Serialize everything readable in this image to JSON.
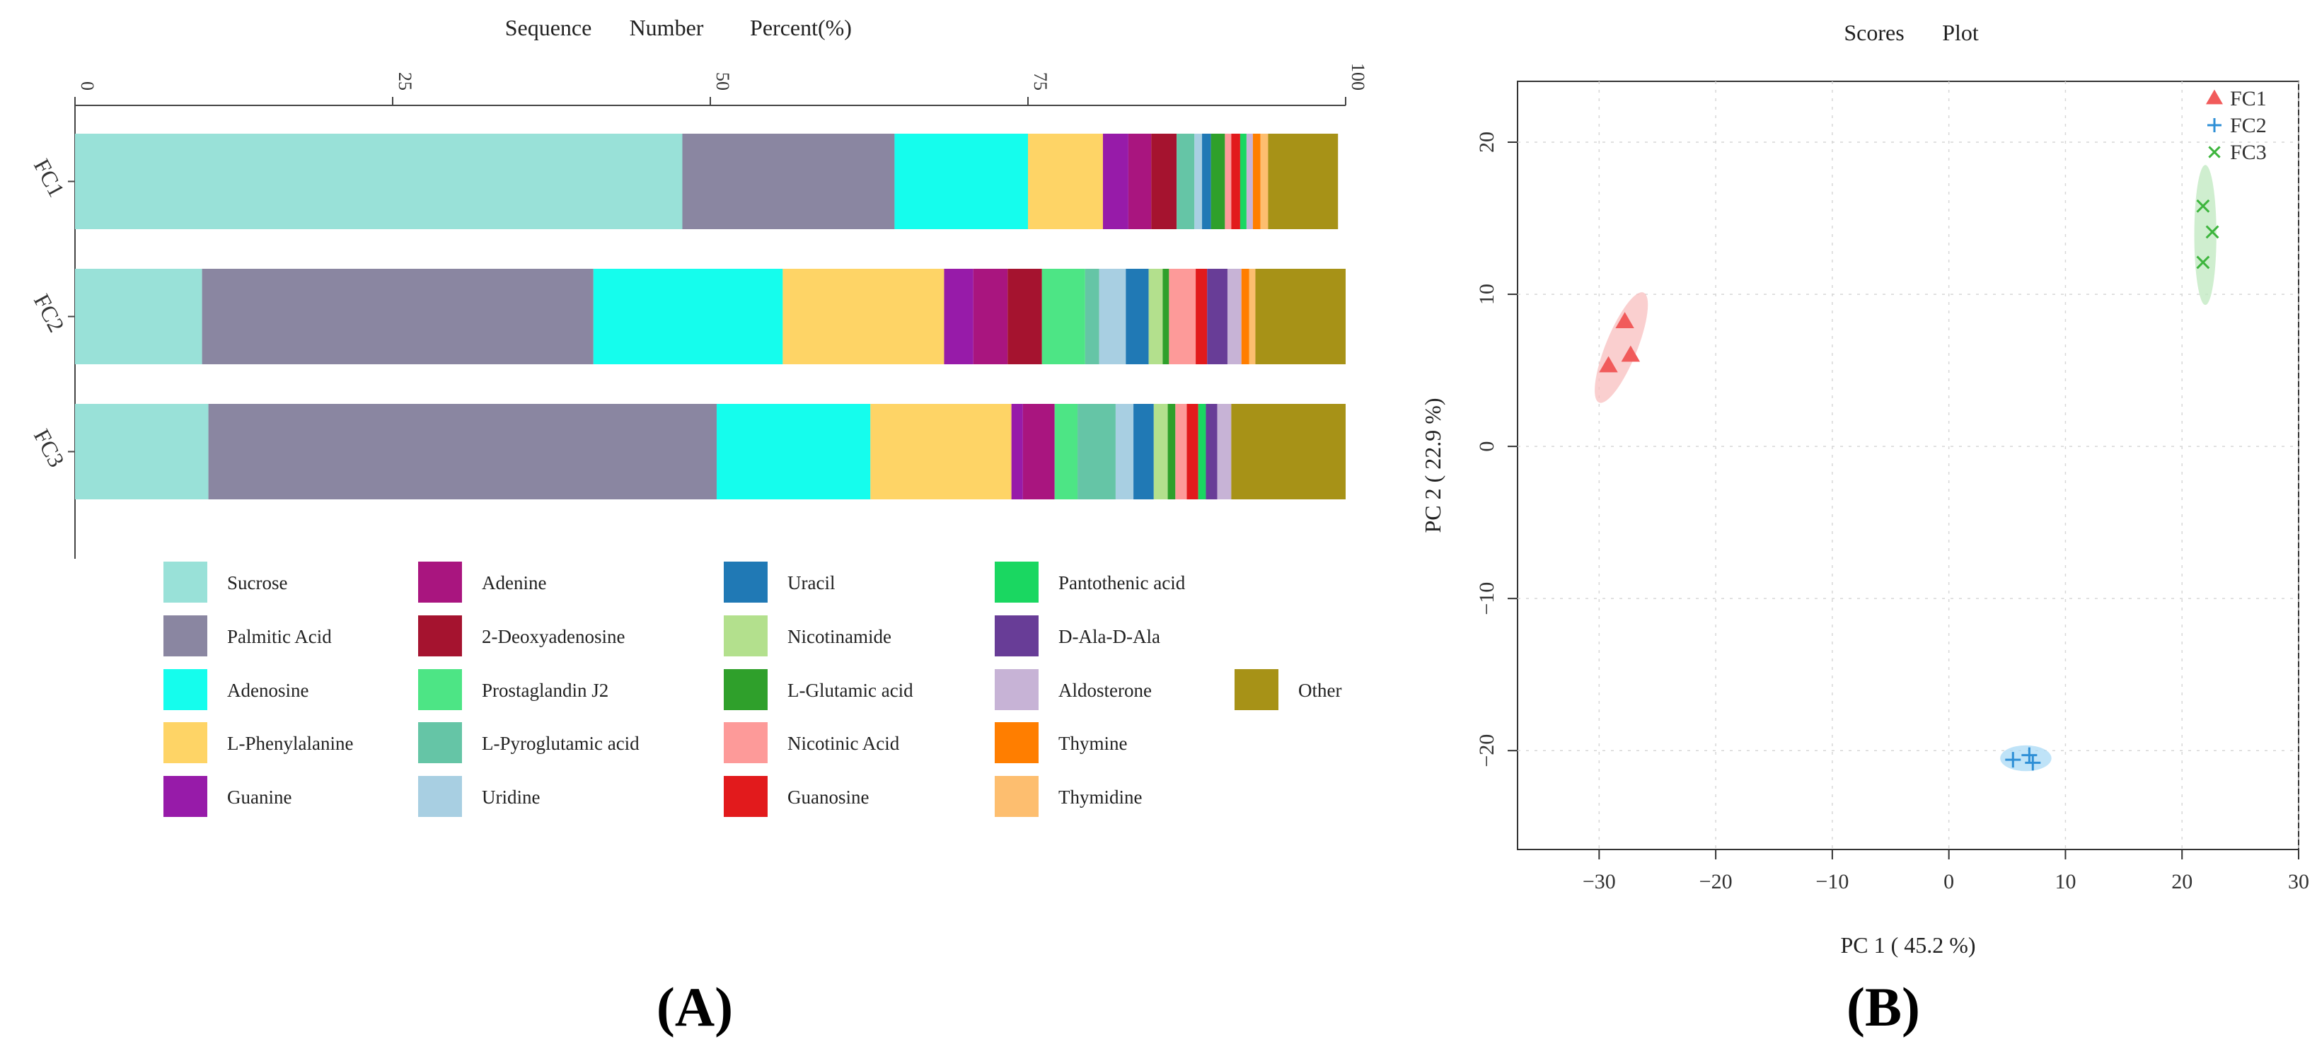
{
  "panel_labels": [
    "(A)",
    "(B)"
  ],
  "chart_data": [
    {
      "type": "bar",
      "orientation": "horizontal",
      "stacked": true,
      "title": "Sequence Number Percent(%)",
      "title_parts": [
        "Sequence",
        "Number",
        "Percent(%)"
      ],
      "xlabel": "",
      "ylabel": "",
      "xlim": [
        0,
        100
      ],
      "x_ticks": [
        0,
        25,
        50,
        75,
        100
      ],
      "x_tick_labels": [
        "0",
        "25",
        "50",
        "75",
        "100"
      ],
      "categories": [
        "FC1",
        "FC2",
        "FC3"
      ],
      "grid": false,
      "legend_position": "bottom",
      "series": [
        {
          "name": "Sucrose",
          "color": "#99E1D8",
          "values": [
            47.8,
            10.0,
            10.5
          ]
        },
        {
          "name": "Palmitic Acid",
          "color": "#8A86A1",
          "values": [
            16.7,
            30.8,
            40.0
          ]
        },
        {
          "name": "Adenosine",
          "color": "#15FDED",
          "values": [
            10.5,
            14.9,
            12.1
          ]
        },
        {
          "name": "L-Phenylalanine",
          "color": "#FED466",
          "values": [
            5.9,
            12.7,
            11.1
          ]
        },
        {
          "name": "Guanine",
          "color": "#971BA9",
          "values": [
            2.0,
            2.3,
            0.9
          ]
        },
        {
          "name": "Adenine",
          "color": "#A9157F",
          "values": [
            1.8,
            2.7,
            2.5
          ]
        },
        {
          "name": "2-Deoxyadenosine",
          "color": "#A5132F",
          "values": [
            2.0,
            2.7,
            0.0
          ]
        },
        {
          "name": "Prostaglandin J2",
          "color": "#4DE585",
          "values": [
            0.0,
            3.4,
            1.8
          ]
        },
        {
          "name": "L-Pyroglutamic acid",
          "color": "#65C5A6",
          "values": [
            1.4,
            1.1,
            3.0
          ]
        },
        {
          "name": "Uridine",
          "color": "#A8CFE2",
          "values": [
            0.6,
            2.1,
            1.4
          ]
        },
        {
          "name": "Uracil",
          "color": "#2079B5",
          "values": [
            0.7,
            1.8,
            1.6
          ]
        },
        {
          "name": "Nicotinamide",
          "color": "#B3E08D",
          "values": [
            0.0,
            1.1,
            1.1
          ]
        },
        {
          "name": "L-Glutamic acid",
          "color": "#2FA02B",
          "values": [
            1.1,
            0.5,
            0.6
          ]
        },
        {
          "name": "Nicotinic Acid",
          "color": "#FD9A99",
          "values": [
            0.5,
            2.1,
            0.9
          ]
        },
        {
          "name": "Guanosine",
          "color": "#E21A1C",
          "values": [
            0.7,
            0.9,
            0.9
          ]
        },
        {
          "name": "Pantothenic acid",
          "color": "#1AD761",
          "values": [
            0.5,
            0.0,
            0.6
          ]
        },
        {
          "name": "D-Ala-D-Ala",
          "color": "#683D97",
          "values": [
            0.0,
            1.6,
            0.9
          ]
        },
        {
          "name": "Aldosterone",
          "color": "#C7B3D6",
          "values": [
            0.5,
            1.1,
            1.1
          ]
        },
        {
          "name": "Thymine",
          "color": "#FF7E00",
          "values": [
            0.6,
            0.6,
            0.0
          ]
        },
        {
          "name": "Thymidine",
          "color": "#FDBE6F",
          "values": [
            0.6,
            0.5,
            0.0
          ]
        },
        {
          "name": "Other",
          "color": "#A79217",
          "values": [
            5.5,
            7.1,
            9.0
          ]
        }
      ],
      "legend_columns": [
        [
          "Sucrose",
          "Palmitic Acid",
          "Adenosine",
          "L-Phenylalanine",
          "Guanine"
        ],
        [
          "Adenine",
          "2-Deoxyadenosine",
          "Prostaglandin J2",
          "L-Pyroglutamic acid",
          "Uridine"
        ],
        [
          "Uracil",
          "Nicotinamide",
          "L-Glutamic acid",
          "Nicotinic Acid",
          "Guanosine"
        ],
        [
          "Pantothenic acid",
          "D-Ala-D-Ala",
          "Aldosterone",
          "Thymine",
          "Thymidine"
        ],
        [
          "",
          "",
          "Other",
          "",
          ""
        ]
      ]
    },
    {
      "type": "scatter",
      "title": "Scores Plot",
      "title_parts": [
        "Scores",
        "Plot"
      ],
      "xlabel": "PC 1 ( 45.2 %)",
      "ylabel": "PC 2 ( 22.9 %)",
      "xlim": [
        -37,
        30
      ],
      "ylim": [
        -26.5,
        24
      ],
      "x_ticks": [
        -30,
        -20,
        -10,
        0,
        10,
        20,
        30
      ],
      "x_tick_labels": [
        "−30",
        "−20",
        "−10",
        "0",
        "10",
        "20",
        "30"
      ],
      "y_ticks": [
        -20,
        -10,
        0,
        10,
        20
      ],
      "y_tick_labels": [
        "−20",
        "−10",
        "0",
        "10",
        "20"
      ],
      "grid": true,
      "legend_position": "top-right",
      "series": [
        {
          "name": "FC1",
          "marker": "triangle",
          "color": "#F15B5B",
          "ellipse_color": "#F8BFBF",
          "points": [
            [
              -27.8,
              8.2
            ],
            [
              -27.3,
              6.0
            ],
            [
              -29.2,
              5.3
            ]
          ],
          "ellipse": {
            "cx": -28.1,
            "cy": 6.5,
            "rx": 1.35,
            "ry": 3.9,
            "angle": 22
          }
        },
        {
          "name": "FC2",
          "marker": "plus",
          "color": "#2E8FD6",
          "ellipse_color": "#A9DAF5",
          "points": [
            [
              5.5,
              -20.6
            ],
            [
              6.9,
              -20.3
            ],
            [
              7.2,
              -20.8
            ]
          ],
          "ellipse": {
            "cx": 6.6,
            "cy": -20.5,
            "rx": 2.2,
            "ry": 0.85,
            "angle": 0
          }
        },
        {
          "name": "FC3",
          "marker": "x",
          "color": "#3DB53D",
          "ellipse_color": "#BFE8BF",
          "points": [
            [
              21.8,
              15.8
            ],
            [
              22.6,
              14.1
            ],
            [
              21.8,
              12.1
            ]
          ],
          "ellipse": {
            "cx": 22.0,
            "cy": 13.9,
            "rx": 0.95,
            "ry": 4.6,
            "angle": 0
          }
        }
      ]
    }
  ]
}
